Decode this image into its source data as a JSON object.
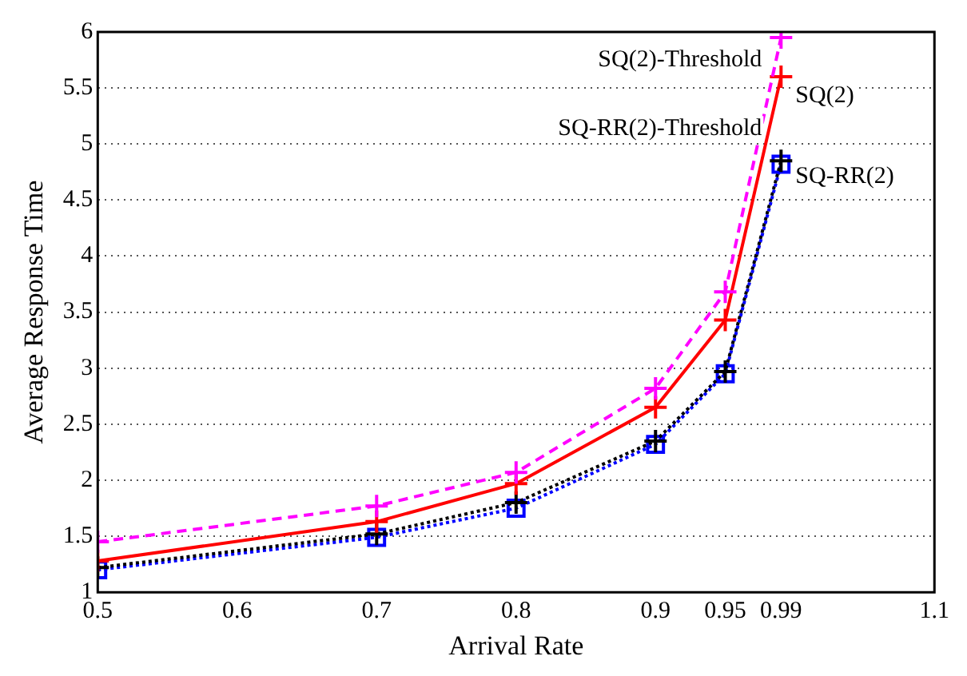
{
  "chart_data": {
    "type": "line",
    "xlabel": "Arrival Rate",
    "ylabel": "Average Response Time",
    "x": [
      0.5,
      0.7,
      0.8,
      0.9,
      0.95,
      0.99
    ],
    "xlim": [
      0.5,
      1.1
    ],
    "xticks": [
      0.5,
      0.6,
      0.7,
      0.8,
      0.9,
      0.95,
      0.99,
      1.1
    ],
    "ylim": [
      1,
      6
    ],
    "yticks": [
      1,
      1.5,
      2,
      2.5,
      3,
      3.5,
      4,
      4.5,
      5,
      5.5,
      6
    ],
    "grid": "y",
    "legend": false,
    "series": [
      {
        "name": "SQ(2)-Threshold",
        "color": "#ff00ff",
        "values": [
          1.45,
          1.77,
          2.07,
          2.82,
          3.68,
          5.95
        ],
        "marker": "cross",
        "line_style": "dashed"
      },
      {
        "name": "SQ(2)",
        "color": "#ff0000",
        "values": [
          1.28,
          1.63,
          1.97,
          2.65,
          3.43,
          5.6
        ],
        "marker": "cross",
        "line_style": "solid"
      },
      {
        "name": "SQ-RR(2)-Threshold",
        "color": "#000000",
        "values": [
          1.22,
          1.52,
          1.8,
          2.35,
          2.97,
          4.85
        ],
        "marker": "cross",
        "line_style": "dotted"
      },
      {
        "name": "SQ-RR(2)",
        "color": "#0000ff",
        "values": [
          1.2,
          1.49,
          1.75,
          2.32,
          2.95,
          4.82
        ],
        "marker": "square",
        "line_style": "dotted"
      }
    ]
  }
}
